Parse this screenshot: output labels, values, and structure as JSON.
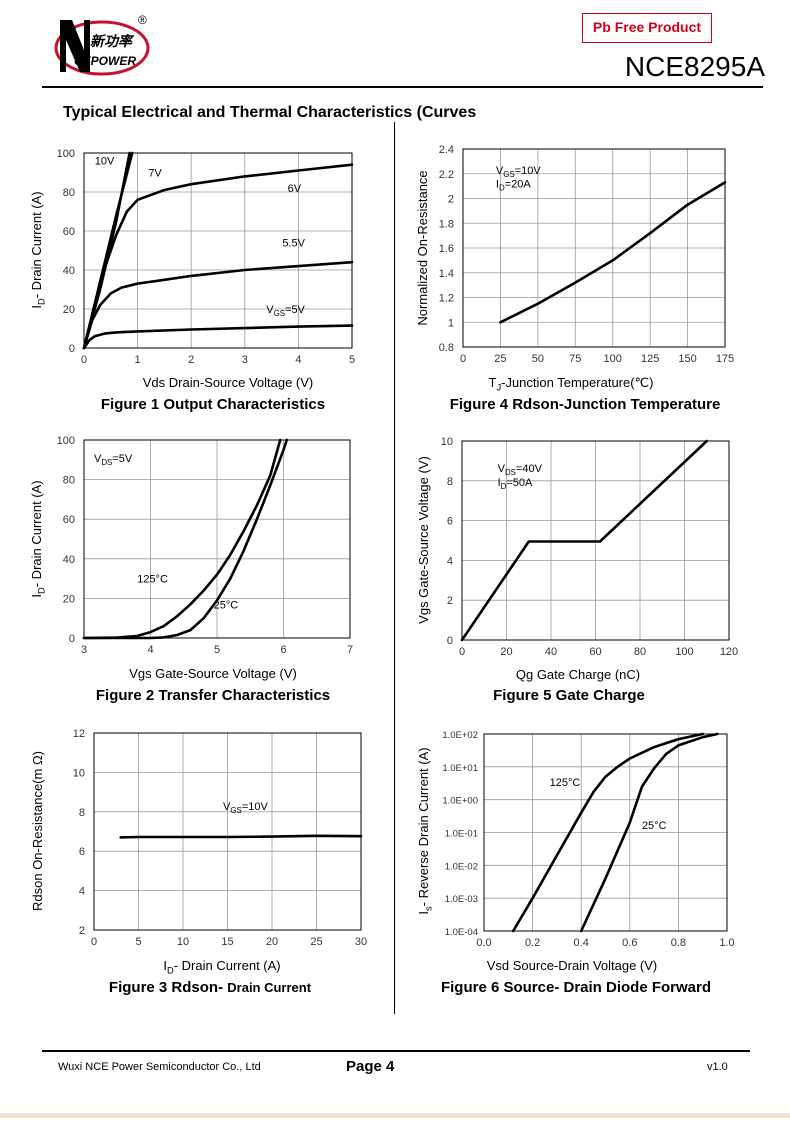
{
  "header": {
    "logo_text_cn": "新功率",
    "logo_text_en": "CEPOWER",
    "logo_mark": "N",
    "registered": "®",
    "badge": "Pb Free Product",
    "model": "NCE8295A"
  },
  "section_title": "Typical Electrical and Thermal Characteristics (Curves",
  "footer": {
    "company": "Wuxi NCE Power Semiconductor Co., Ltd",
    "page": "Page 4",
    "version": "v1.0"
  },
  "chart_data": [
    {
      "id": "fig1",
      "type": "line",
      "caption": "Figure 1 Output Characteristics",
      "xlabel": "Vds Drain-Source Voltage (V)",
      "ylabel_main": "I",
      "ylabel_sub": "D",
      "ylabel_rest": "- Drain Current (A)",
      "xlim": [
        0,
        5
      ],
      "ylim": [
        0,
        100
      ],
      "xticks": [
        "0",
        "1",
        "2",
        "3",
        "4",
        "5"
      ],
      "yticks": [
        "0",
        "20",
        "40",
        "60",
        "80",
        "100"
      ],
      "grid": true,
      "series": [
        {
          "label": "10V",
          "x": [
            0,
            0.3,
            0.6,
            0.9
          ],
          "y": [
            0,
            34,
            68,
            100
          ]
        },
        {
          "label": "7V",
          "x": [
            0,
            0.3,
            0.6,
            0.85
          ],
          "y": [
            0,
            30,
            65,
            100
          ]
        },
        {
          "label": "6V",
          "x": [
            0,
            0.2,
            0.4,
            0.6,
            0.8,
            1.0,
            1.5,
            2.0,
            3.0,
            4.0,
            5.0
          ],
          "y": [
            0,
            22,
            42,
            58,
            70,
            76,
            81,
            84,
            88,
            91,
            94
          ]
        },
        {
          "label": "5.5V",
          "x": [
            0,
            0.15,
            0.3,
            0.5,
            0.7,
            1.0,
            1.5,
            2.0,
            3.0,
            4.0,
            5.0
          ],
          "y": [
            0,
            14,
            22,
            28,
            31,
            33,
            35,
            37,
            40,
            42,
            44
          ]
        },
        {
          "label": "VGS=5V",
          "x": [
            0,
            0.1,
            0.2,
            0.4,
            0.6,
            1.0,
            2.0,
            3.0,
            4.0,
            5.0
          ],
          "y": [
            0,
            4,
            6,
            7.5,
            8,
            8.5,
            9.5,
            10.2,
            11,
            11.5
          ]
        }
      ],
      "annotations": [
        {
          "text": "10V",
          "x": 0.2,
          "y": 94
        },
        {
          "text": "7V",
          "x": 1.2,
          "y": 88
        },
        {
          "text": "6V",
          "x": 3.8,
          "y": 80
        },
        {
          "text": "5.5V",
          "x": 3.7,
          "y": 52
        },
        {
          "text": "V",
          "sub": "GS",
          "after": "=5V",
          "x": 3.4,
          "y": 18
        }
      ]
    },
    {
      "id": "fig2",
      "type": "line",
      "caption": "Figure 2 Transfer Characteristics",
      "xlabel": "Vgs Gate-Source Voltage (V)",
      "ylabel_main": "I",
      "ylabel_sub": "D",
      "ylabel_rest": "- Drain Current (A)",
      "xlim": [
        3,
        7
      ],
      "ylim": [
        0,
        100
      ],
      "xticks": [
        "3",
        "4",
        "5",
        "6",
        "7"
      ],
      "yticks": [
        "0",
        "20",
        "40",
        "60",
        "80",
        "100"
      ],
      "grid": true,
      "series": [
        {
          "label": "125°C",
          "x": [
            3,
            3.5,
            3.8,
            4.0,
            4.2,
            4.4,
            4.6,
            4.8,
            5.0,
            5.2,
            5.4,
            5.6,
            5.8,
            5.95
          ],
          "y": [
            0,
            0.2,
            1,
            3,
            6,
            11,
            17,
            24,
            32,
            42,
            54,
            67,
            82,
            100
          ]
        },
        {
          "label": "25°C",
          "x": [
            3,
            4.0,
            4.2,
            4.4,
            4.6,
            4.8,
            5.0,
            5.2,
            5.4,
            5.6,
            5.8,
            6.0,
            6.05
          ],
          "y": [
            0,
            0,
            0.3,
            1.5,
            4,
            10,
            19,
            30,
            44,
            60,
            77,
            95,
            100
          ]
        }
      ],
      "annotations": [
        {
          "text": "V",
          "sub": "DS",
          "after": "=5V",
          "x": 3.15,
          "y": 89
        },
        {
          "text": "125°C",
          "x": 3.8,
          "y": 28
        },
        {
          "text": "25°C",
          "x": 4.95,
          "y": 15
        }
      ]
    },
    {
      "id": "fig3",
      "type": "line",
      "caption_bold": "Figure 3 Rdson- ",
      "caption_small": "Drain Current",
      "xlabel_main": "I",
      "xlabel_sub": "D",
      "xlabel_rest": "- Drain Current (A)",
      "ylabel": "Rdson On-Resistance(m Ω)",
      "xlim": [
        0,
        30
      ],
      "ylim": [
        2,
        12
      ],
      "xticks": [
        "0",
        "5",
        "10",
        "15",
        "20",
        "25",
        "30"
      ],
      "yticks": [
        "2",
        "4",
        "6",
        "8",
        "10",
        "12"
      ],
      "grid": true,
      "series": [
        {
          "label": "VGS=10V",
          "x": [
            3,
            5,
            10,
            15,
            20,
            25,
            30
          ],
          "y": [
            6.7,
            6.72,
            6.72,
            6.72,
            6.74,
            6.78,
            6.76
          ]
        }
      ],
      "annotations": [
        {
          "text": "V",
          "sub": "GS",
          "after": "=10V",
          "x": 14.5,
          "y": 8.1
        }
      ]
    },
    {
      "id": "fig4",
      "type": "line",
      "caption": "Figure 4 Rdson-Junction Temperature",
      "xlabel_main": "T",
      "xlabel_sub": "J",
      "xlabel_rest": "-Junction Temperature(℃)",
      "ylabel": "Normalized On-Resistance",
      "xlim": [
        0,
        175
      ],
      "ylim": [
        0.8,
        2.4
      ],
      "xticks": [
        "0",
        "25",
        "50",
        "75",
        "100",
        "125",
        "150",
        "175"
      ],
      "yticks": [
        "0.8",
        "1",
        "1.2",
        "1.4",
        "1.6",
        "1.8",
        "2",
        "2.2",
        "2.4"
      ],
      "grid": true,
      "series": [
        {
          "label": "",
          "x": [
            25,
            50,
            75,
            100,
            125,
            150,
            175
          ],
          "y": [
            1.0,
            1.15,
            1.32,
            1.5,
            1.72,
            1.95,
            2.13
          ]
        }
      ],
      "annotations": [
        {
          "text": "V",
          "sub": "GS",
          "after": "=10V",
          "x": 22,
          "y": 2.2
        },
        {
          "text": "I",
          "sub": "D",
          "after": "=20A",
          "x": 22,
          "y": 2.09
        }
      ]
    },
    {
      "id": "fig5",
      "type": "line",
      "caption": "Figure 5 Gate Charge",
      "xlabel": "Qg Gate Charge (nC)",
      "ylabel": "Vgs Gate-Source Voltage (V)",
      "xlim": [
        0,
        120
      ],
      "ylim": [
        0,
        10
      ],
      "xticks": [
        "0",
        "20",
        "40",
        "60",
        "80",
        "100",
        "120"
      ],
      "yticks": [
        "0",
        "2",
        "4",
        "6",
        "8",
        "10"
      ],
      "grid": true,
      "series": [
        {
          "label": "",
          "x": [
            0,
            30,
            62,
            110
          ],
          "y": [
            0,
            4.95,
            4.95,
            10
          ]
        }
      ],
      "annotations": [
        {
          "text": "V",
          "sub": "DS",
          "after": "=40V",
          "x": 16,
          "y": 8.45
        },
        {
          "text": "I",
          "sub": "D",
          "after": "=50A",
          "x": 16,
          "y": 7.75
        }
      ]
    },
    {
      "id": "fig6",
      "type": "line",
      "caption": "Figure 6 Source- Drain Diode Forward",
      "xlabel": "Vsd Source-Drain Voltage (V)",
      "ylabel_main": "I",
      "ylabel_sub": "s",
      "ylabel_rest": "- Reverse Drain Current (A)",
      "xlim": [
        0,
        1.0
      ],
      "ylim": [
        0.0001,
        100
      ],
      "yscale": "log",
      "xticks": [
        "0.0",
        "0.2",
        "0.4",
        "0.6",
        "0.8",
        "1.0"
      ],
      "yticks": [
        "1.0E-04",
        "1.0E-03",
        "1.0E-02",
        "1.0E-01",
        "1.0E+00",
        "1.0E+01",
        "1.0E+02"
      ],
      "grid": true,
      "series": [
        {
          "label": "125°C",
          "x": [
            0.12,
            0.2,
            0.3,
            0.4,
            0.45,
            0.5,
            0.55,
            0.6,
            0.7,
            0.8,
            0.9
          ],
          "y": [
            0.0001,
            0.001,
            0.02,
            0.4,
            1.7,
            5,
            10,
            18,
            40,
            70,
            100
          ]
        },
        {
          "label": "25°C",
          "x": [
            0.4,
            0.5,
            0.6,
            0.65,
            0.7,
            0.75,
            0.8,
            0.9,
            0.96
          ],
          "y": [
            0.0001,
            0.004,
            0.2,
            2.5,
            9,
            25,
            45,
            80,
            100
          ]
        }
      ],
      "annotations": [
        {
          "text": "125°C",
          "x": 0.27,
          "y": 2.6
        },
        {
          "text": "25°C",
          "x": 0.65,
          "y": 0.13
        }
      ]
    }
  ]
}
